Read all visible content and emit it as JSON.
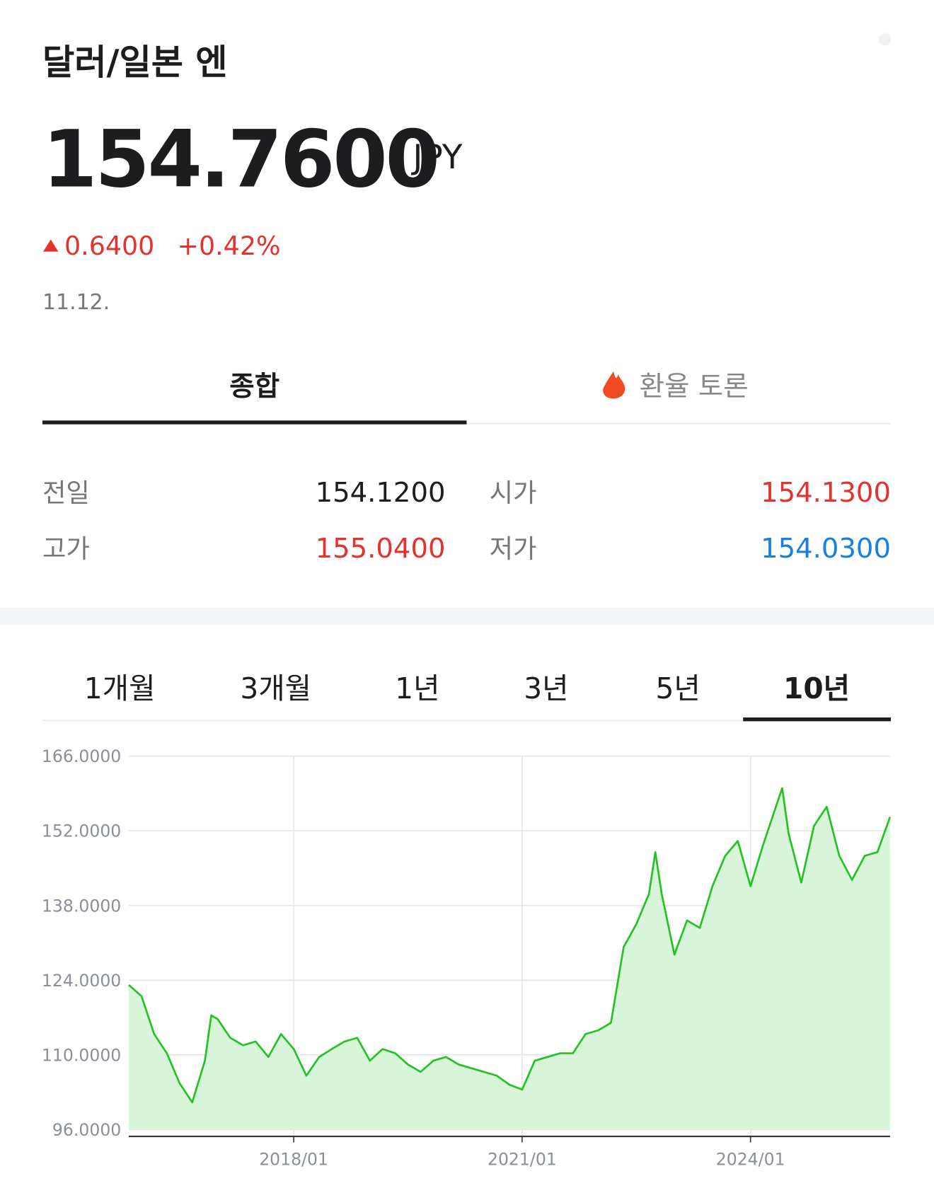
{
  "header": {
    "title": "달러/일본 엔",
    "price": "154.7600",
    "unit": "JPY",
    "change": "0.6400",
    "change_pct": "+0.42%",
    "date": "11.12."
  },
  "tabs": [
    "종합",
    "환율 토론"
  ],
  "stats": [
    [
      "전일",
      "154.1200"
    ],
    [
      "시가",
      "154.1300"
    ],
    [
      "고가",
      "155.0400"
    ],
    [
      "저가",
      "154.0300"
    ]
  ],
  "ranges": [
    "1개월",
    "3개월",
    "1년",
    "3년",
    "5년",
    "10년"
  ],
  "chart_data": {
    "type": "line",
    "color": "#22c322",
    "area_color": "#d9f5d9",
    "grid": true,
    "x": [
      "2015/11",
      "2016/01",
      "2016/03",
      "2016/05",
      "2016/07",
      "2016/09",
      "2016/11",
      "2016/12",
      "2017/01",
      "2017/03",
      "2017/05",
      "2017/07",
      "2017/09",
      "2017/11",
      "2018/01",
      "2018/03",
      "2018/05",
      "2018/07",
      "2018/09",
      "2018/11",
      "2019/01",
      "2019/03",
      "2019/05",
      "2019/07",
      "2019/09",
      "2019/11",
      "2020/01",
      "2020/03",
      "2020/05",
      "2020/07",
      "2020/09",
      "2020/11",
      "2021/01",
      "2021/03",
      "2021/05",
      "2021/07",
      "2021/09",
      "2021/11",
      "2022/01",
      "2022/03",
      "2022/05",
      "2022/07",
      "2022/09",
      "2022/10",
      "2022/11",
      "2023/01",
      "2023/03",
      "2023/05",
      "2023/07",
      "2023/09",
      "2023/11",
      "2024/01",
      "2024/03",
      "2024/05",
      "2024/06",
      "2024/07",
      "2024/09",
      "2024/11",
      "2025/01",
      "2025/03",
      "2025/05",
      "2025/07",
      "2025/09",
      "2025/11"
    ],
    "values": [
      123.1,
      121,
      113.9,
      110.3,
      104.7,
      101.1,
      108.9,
      117.4,
      116.7,
      113.2,
      111.8,
      112.5,
      109.6,
      113.9,
      111.1,
      106.1,
      109.6,
      111.1,
      112.5,
      113.2,
      108.9,
      111.1,
      110.3,
      108.2,
      106.8,
      108.9,
      109.6,
      108.2,
      107.5,
      106.8,
      106.1,
      104.4,
      103.5,
      108.9,
      109.6,
      110.3,
      110.3,
      113.9,
      114.6,
      116.0,
      130.2,
      134.5,
      140.2,
      148.0,
      140.2,
      128.8,
      135.2,
      133.8,
      141.6,
      147.3,
      150.1,
      141.6,
      149.4,
      156.5,
      160.0,
      151.5,
      142.3,
      152.9,
      156.5,
      147.3,
      142.8,
      147.3,
      148.0,
      154.6
    ],
    "xlim": [
      "2015/11",
      "2025/11"
    ],
    "xticks": [
      "2018/01",
      "2021/01",
      "2024/01"
    ],
    "ylim": [
      96,
      166
    ],
    "yticks": [
      {
        "value": 96,
        "label": "96.0000"
      },
      {
        "value": 110,
        "label": "110.0000"
      },
      {
        "value": 124,
        "label": "124.0000"
      },
      {
        "value": 138,
        "label": "138.0000"
      },
      {
        "value": 152,
        "label": "152.0000"
      },
      {
        "value": 166,
        "label": "166.0000"
      }
    ]
  }
}
